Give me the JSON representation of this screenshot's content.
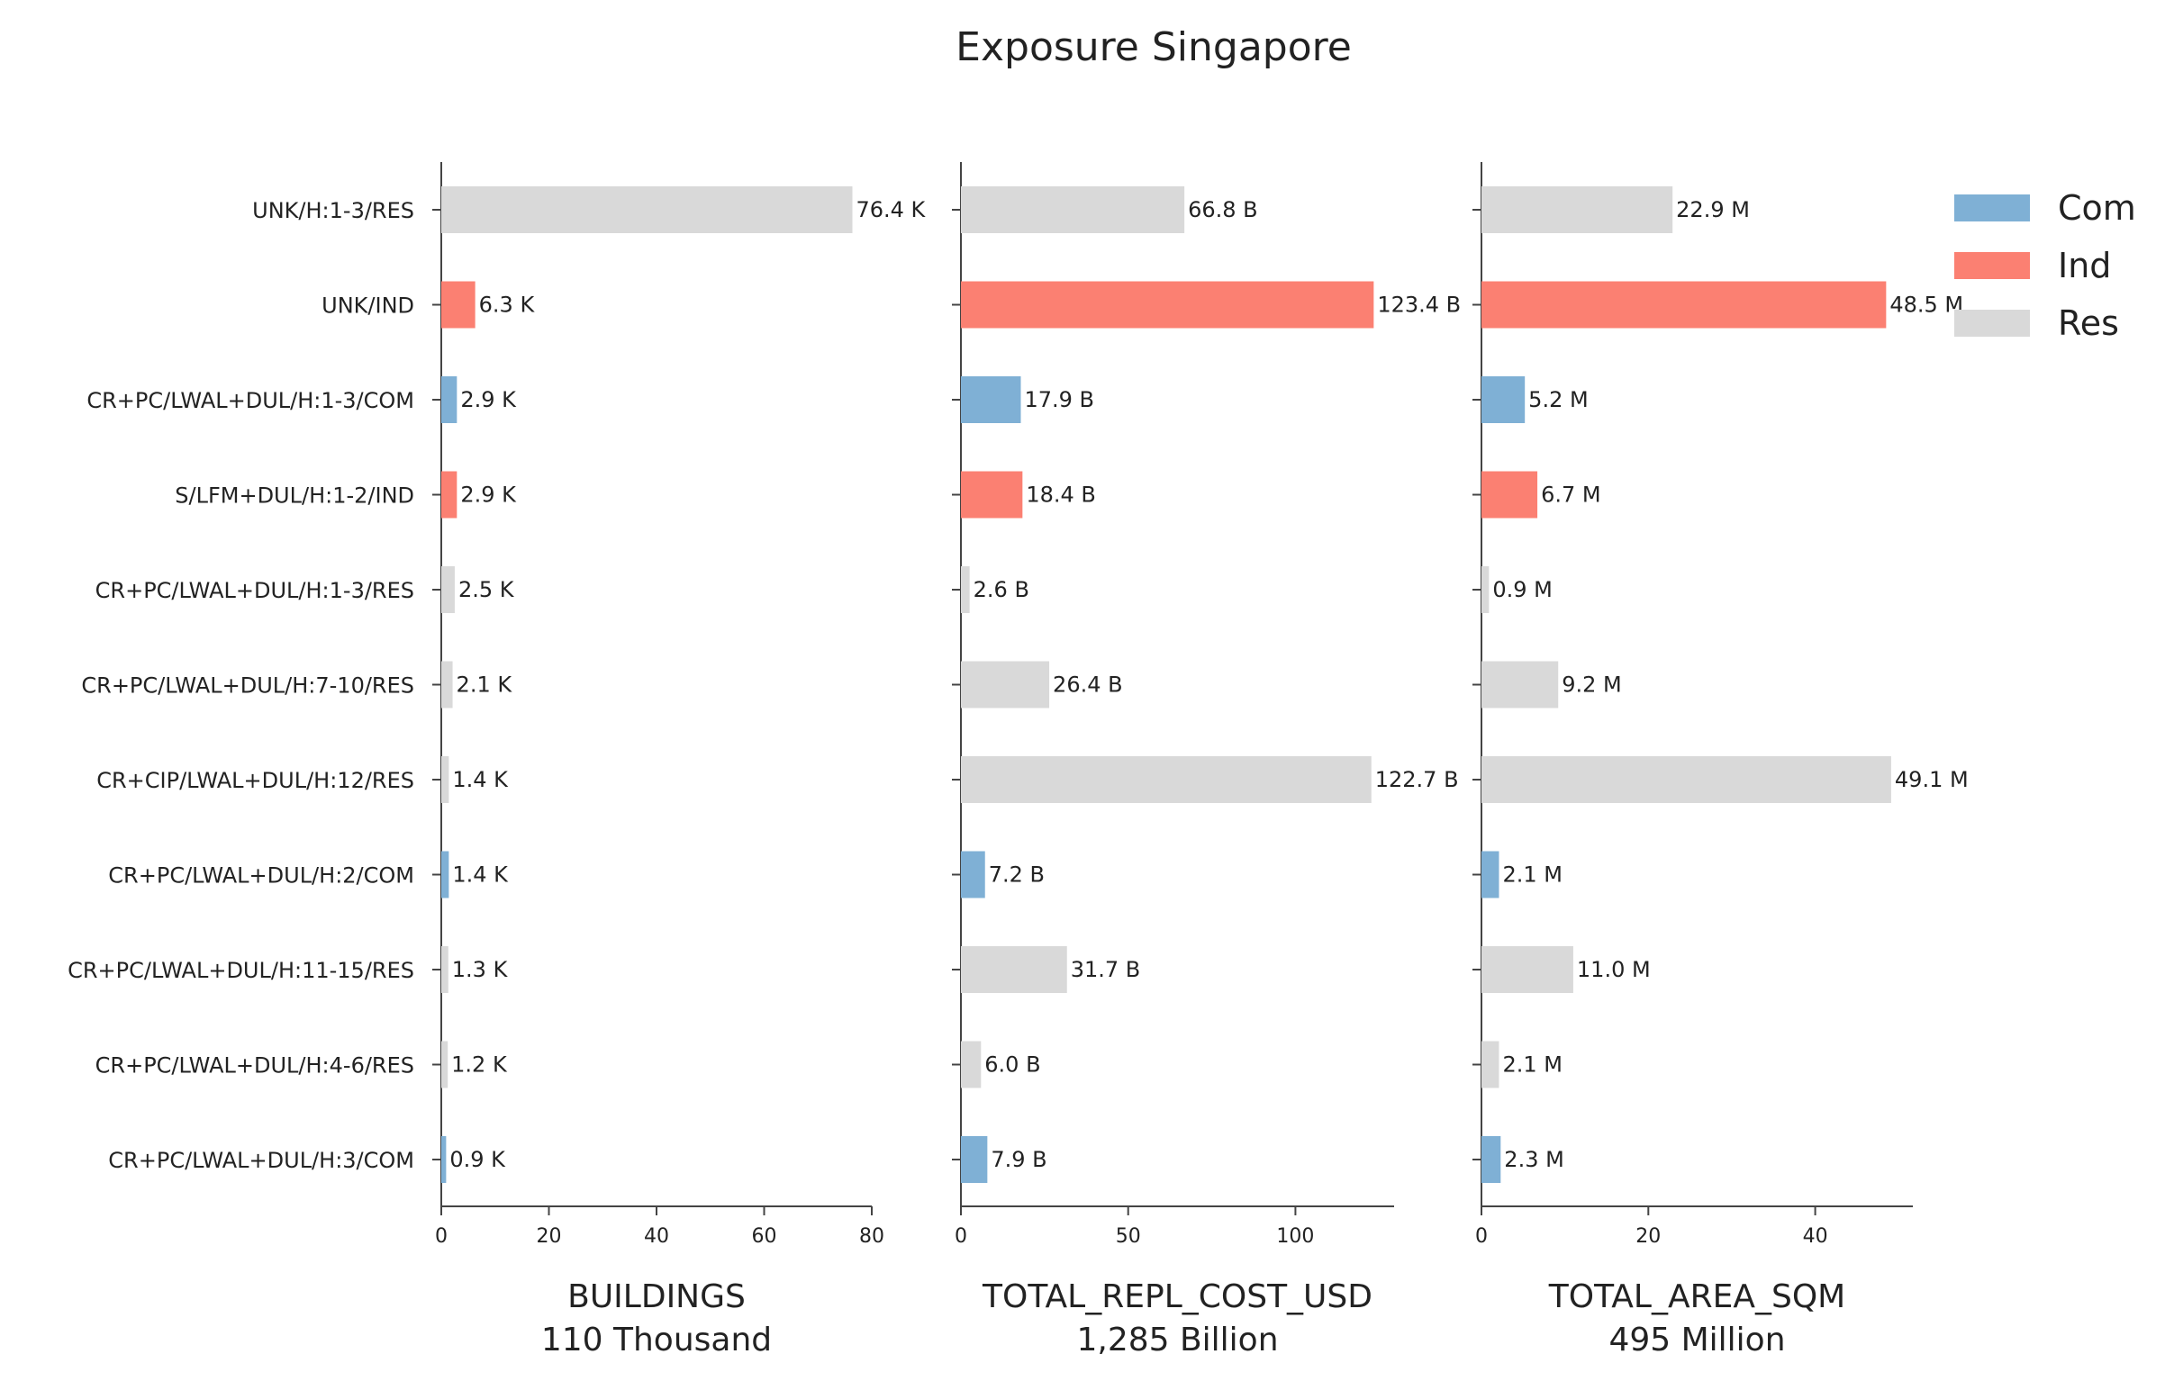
{
  "chart_data": {
    "type": "bar",
    "orientation": "horizontal",
    "title": "Exposure Singapore",
    "categories": [
      "UNK/H:1-3/RES",
      "UNK/IND",
      "CR+PC/LWAL+DUL/H:1-3/COM",
      "S/LFM+DUL/H:1-2/IND",
      "CR+PC/LWAL+DUL/H:1-3/RES",
      "CR+PC/LWAL+DUL/H:7-10/RES",
      "CR+CIP/LWAL+DUL/H:12/RES",
      "CR+PC/LWAL+DUL/H:2/COM",
      "CR+PC/LWAL+DUL/H:11-15/RES",
      "CR+PC/LWAL+DUL/H:4-6/RES",
      "CR+PC/LWAL+DUL/H:3/COM"
    ],
    "occupancy": [
      "Res",
      "Ind",
      "Com",
      "Ind",
      "Res",
      "Res",
      "Res",
      "Com",
      "Res",
      "Res",
      "Com"
    ],
    "colors": {
      "Com": "#7fb0d5",
      "Ind": "#fb8072",
      "Res": "#d9d9d9"
    },
    "legend": {
      "position": "top-right",
      "entries": [
        "Com",
        "Ind",
        "Res"
      ]
    },
    "panels": [
      {
        "xlabel": "BUILDINGS",
        "subtitle": "110 Thousand",
        "xlim": [
          0,
          80
        ],
        "ticks": [
          0,
          20,
          40,
          60,
          80
        ],
        "values": [
          76.4,
          6.3,
          2.9,
          2.9,
          2.5,
          2.1,
          1.4,
          1.4,
          1.3,
          1.2,
          0.9
        ],
        "value_labels": [
          "76.4 K",
          "6.3 K",
          "2.9 K",
          "2.9 K",
          "2.5 K",
          "2.1 K",
          "1.4 K",
          "1.4 K",
          "1.3 K",
          "1.2 K",
          "0.9 K"
        ]
      },
      {
        "xlabel": "TOTAL_REPL_COST_USD",
        "subtitle": "1,285 Billion",
        "xlim": [
          0,
          129.5
        ],
        "ticks": [
          0,
          50,
          100
        ],
        "values": [
          66.8,
          123.4,
          17.9,
          18.4,
          2.6,
          26.4,
          122.7,
          7.2,
          31.7,
          6.0,
          7.9
        ],
        "value_labels": [
          "66.8 B",
          "123.4 B",
          "17.9 B",
          "18.4 B",
          "2.6 B",
          "26.4 B",
          "122.7 B",
          "7.2 B",
          "31.7 B",
          "6.0 B",
          "7.9 B"
        ]
      },
      {
        "xlabel": "TOTAL_AREA_SQM",
        "subtitle": "495 Million",
        "xlim": [
          0,
          51.7
        ],
        "ticks": [
          0,
          20,
          40
        ],
        "values": [
          22.9,
          48.5,
          5.2,
          6.7,
          0.9,
          9.2,
          49.1,
          2.1,
          11.0,
          2.1,
          2.3
        ],
        "value_labels": [
          "22.9 M",
          "48.5 M",
          "5.2 M",
          "6.7 M",
          "0.9 M",
          "9.2 M",
          "49.1 M",
          "2.1 M",
          "11.0 M",
          "2.1 M",
          "2.3 M"
        ]
      }
    ]
  }
}
